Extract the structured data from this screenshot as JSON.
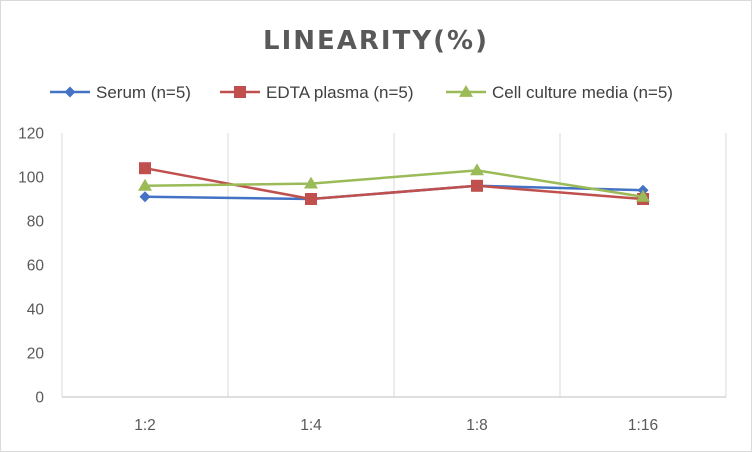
{
  "chart_data": {
    "type": "line",
    "title": "LINEARITY(%)",
    "xlabel": "",
    "ylabel": "",
    "categories": [
      "1:2",
      "1:4",
      "1:8",
      "1:16"
    ],
    "ylim": [
      0,
      120
    ],
    "yticks": [
      0,
      20,
      40,
      60,
      80,
      100,
      120
    ],
    "grid": "vertical",
    "legend_position": "top",
    "series": [
      {
        "name": "Serum (n=5)",
        "values": [
          91,
          90,
          96,
          94
        ],
        "color": "#4472c4",
        "marker": "diamond"
      },
      {
        "name": "EDTA plasma (n=5)",
        "values": [
          104,
          90,
          96,
          90
        ],
        "color": "#c0504d",
        "marker": "square"
      },
      {
        "name": "Cell culture media (n=5)",
        "values": [
          96,
          97,
          103,
          91
        ],
        "color": "#9bbb59",
        "marker": "triangle"
      }
    ]
  }
}
